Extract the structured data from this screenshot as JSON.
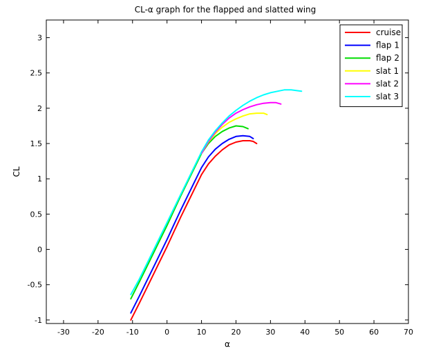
{
  "chart_data": {
    "type": "line",
    "title": "CL-α graph for the flapped and slatted wing",
    "xlabel": "α",
    "ylabel": "CL",
    "xlim": [
      -35,
      70
    ],
    "ylim": [
      -1.05,
      3.25
    ],
    "xticks": [
      -30,
      -20,
      -10,
      0,
      10,
      20,
      30,
      40,
      50,
      60,
      70
    ],
    "yticks": [
      -1,
      -0.5,
      0,
      0.5,
      1,
      1.5,
      2,
      2.5,
      3
    ],
    "xtick_labels": [
      "-30",
      "-20",
      "-10",
      "0",
      "10",
      "20",
      "30",
      "40",
      "50",
      "60",
      "70"
    ],
    "ytick_labels": [
      "-1",
      "-0.5",
      "0",
      "0.5",
      "1",
      "1.5",
      "2",
      "2.5",
      "3"
    ],
    "grid": false,
    "legend_position": "top-right",
    "series": [
      {
        "name": "cruise",
        "color": "#ff0000",
        "x": [
          -10.5,
          -8,
          -6,
          -4,
          -2,
          0,
          2,
          4,
          6,
          8,
          10,
          12,
          14,
          16,
          18,
          20,
          22,
          24,
          25,
          26
        ],
        "y": [
          -1.0,
          -0.76,
          -0.56,
          -0.36,
          -0.16,
          0.04,
          0.25,
          0.46,
          0.66,
          0.86,
          1.06,
          1.21,
          1.32,
          1.41,
          1.48,
          1.52,
          1.54,
          1.54,
          1.53,
          1.5
        ]
      },
      {
        "name": "flap 1",
        "color": "#0000ff",
        "x": [
          -10.5,
          -8,
          -6,
          -4,
          -2,
          0,
          2,
          4,
          6,
          8,
          10,
          12,
          14,
          16,
          18,
          20,
          22,
          24,
          25
        ],
        "y": [
          -0.9,
          -0.66,
          -0.46,
          -0.26,
          -0.06,
          0.14,
          0.35,
          0.56,
          0.76,
          0.96,
          1.16,
          1.31,
          1.42,
          1.5,
          1.56,
          1.6,
          1.61,
          1.6,
          1.57
        ]
      },
      {
        "name": "flap 2",
        "color": "#00dd00",
        "x": [
          -10.5,
          -8,
          -6,
          -4,
          -2,
          0,
          2,
          4,
          6,
          8,
          10,
          12,
          14,
          16,
          18,
          20,
          22,
          23.5
        ],
        "y": [
          -0.7,
          -0.46,
          -0.26,
          -0.06,
          0.14,
          0.34,
          0.55,
          0.76,
          0.96,
          1.16,
          1.36,
          1.5,
          1.6,
          1.67,
          1.72,
          1.75,
          1.74,
          1.71
        ]
      },
      {
        "name": "slat 1",
        "color": "#ffff00",
        "x": [
          10,
          12,
          14,
          16,
          18,
          20,
          22,
          24,
          26,
          28,
          29
        ],
        "y": [
          1.36,
          1.52,
          1.64,
          1.73,
          1.8,
          1.85,
          1.89,
          1.92,
          1.93,
          1.93,
          1.91
        ]
      },
      {
        "name": "slat 2",
        "color": "#ff00ff",
        "x": [
          10,
          12,
          14,
          16,
          18,
          20,
          22,
          24,
          26,
          28,
          30,
          31.5,
          33
        ],
        "y": [
          1.36,
          1.53,
          1.66,
          1.77,
          1.86,
          1.93,
          1.98,
          2.02,
          2.05,
          2.07,
          2.08,
          2.08,
          2.06
        ]
      },
      {
        "name": "slat 3",
        "color": "#00ffff",
        "x": [
          -10.5,
          -8,
          -6,
          -4,
          -2,
          0,
          2,
          4,
          6,
          8,
          10,
          12,
          14,
          16,
          18,
          20,
          22,
          24,
          26,
          28,
          30,
          32,
          34,
          36,
          37.5,
          39
        ],
        "y": [
          -0.64,
          -0.42,
          -0.22,
          -0.02,
          0.18,
          0.38,
          0.58,
          0.78,
          0.98,
          1.18,
          1.38,
          1.55,
          1.68,
          1.79,
          1.89,
          1.97,
          2.04,
          2.1,
          2.15,
          2.19,
          2.22,
          2.24,
          2.26,
          2.26,
          2.25,
          2.24
        ]
      }
    ]
  }
}
